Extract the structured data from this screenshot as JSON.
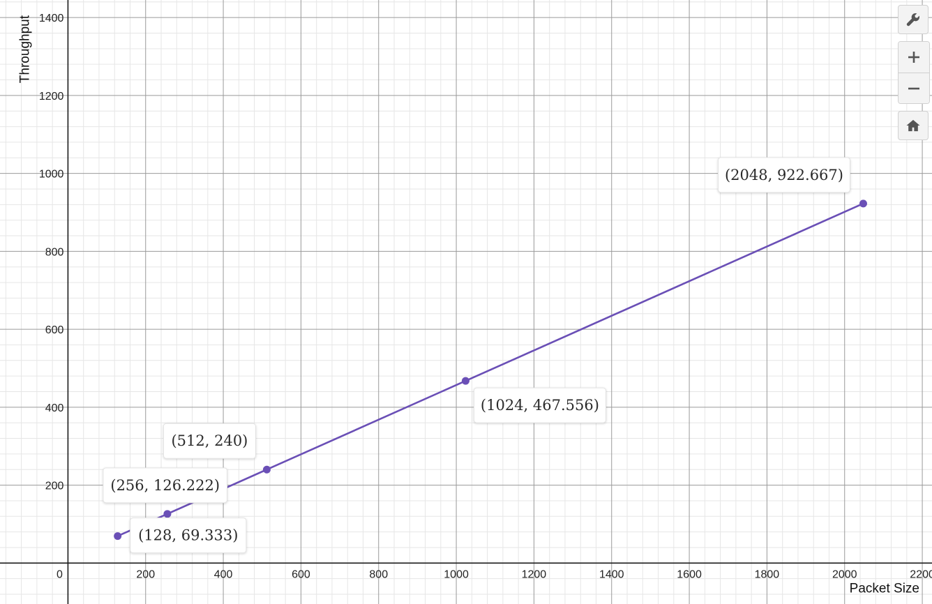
{
  "chart_data": {
    "type": "line",
    "xlabel": "Packet Size",
    "ylabel": "Throughput",
    "xlim": [
      -175,
      2225
    ],
    "ylim": [
      -105,
      1445
    ],
    "x_ticks": [
      0,
      200,
      400,
      600,
      800,
      1000,
      1200,
      1400,
      1600,
      1800,
      2000,
      2200
    ],
    "y_ticks": [
      200,
      400,
      600,
      800,
      1000,
      1200,
      1400
    ],
    "grid": true,
    "series": [
      {
        "color": "#6a4fb6",
        "x": [
          128,
          256,
          512,
          1024,
          2048
        ],
        "y": [
          69.333,
          126.222,
          240,
          467.556,
          922.667
        ]
      }
    ],
    "annotations": [
      {
        "text": "(128, 69.333)",
        "x": 128,
        "y": 69.333
      },
      {
        "text": "(256, 126.222)",
        "x": 256,
        "y": 126.222
      },
      {
        "text": "(512, 240)",
        "x": 512,
        "y": 240
      },
      {
        "text": "(1024, 467.556)",
        "x": 1024,
        "y": 467.556
      },
      {
        "text": "(2048, 922.667)",
        "x": 2048,
        "y": 922.667
      }
    ]
  },
  "controls": {
    "settings_icon": "wrench-icon",
    "zoom_in_icon": "plus-icon",
    "zoom_out_icon": "minus-icon",
    "home_icon": "home-icon"
  }
}
